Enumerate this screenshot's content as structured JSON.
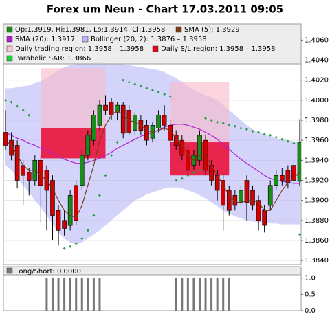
{
  "chart_data": {
    "type": "candlestick",
    "title": "Forex um Neun - Chart 17.03.2011 09:05",
    "ylim": [
      1.3836,
      1.4076
    ],
    "yticks": [
      {
        "value": 1.384,
        "label": "1.3840"
      },
      {
        "value": 1.386,
        "label": "1.3860"
      },
      {
        "value": 1.388,
        "label": "1.3880"
      },
      {
        "value": 1.39,
        "label": "1.3900"
      },
      {
        "value": 1.392,
        "label": "1.3920"
      },
      {
        "value": 1.394,
        "label": "1.3940"
      },
      {
        "value": 1.396,
        "label": "1.3960"
      },
      {
        "value": 1.398,
        "label": "1.3980"
      },
      {
        "value": 1.4,
        "label": "1.4000"
      },
      {
        "value": 1.402,
        "label": "1.4020"
      },
      {
        "value": 1.404,
        "label": "1.4040"
      },
      {
        "value": 1.406,
        "label": "1.4060"
      }
    ],
    "grid": true,
    "up_color": "#1a8c1a",
    "down_color": "#d40000",
    "open": [
      1.3968,
      1.396,
      1.3955,
      1.3935,
      1.3928,
      1.392,
      1.394,
      1.393,
      1.392,
      1.389,
      1.388,
      1.3875,
      1.3915,
      1.3915,
      1.3945,
      1.396,
      1.3975,
      1.3995,
      1.3998,
      1.3988,
      1.3995,
      1.399,
      1.397,
      1.398,
      1.3975,
      1.3962,
      1.3972,
      1.3985,
      1.3975,
      1.3965,
      1.396,
      1.395,
      1.3935,
      1.394,
      1.396,
      1.3935,
      1.3925,
      1.392,
      1.391,
      1.3905,
      1.3898,
      1.392,
      1.391,
      1.39,
      1.389,
      1.3895,
      1.3915,
      1.3925,
      1.393,
      1.3935,
      1.3919
    ],
    "high": [
      1.399,
      1.3968,
      1.396,
      1.394,
      1.3932,
      1.3945,
      1.3945,
      1.3935,
      1.3925,
      1.3895,
      1.389,
      1.391,
      1.392,
      1.395,
      1.397,
      1.399,
      1.4,
      1.4005,
      1.4002,
      1.3998,
      1.3998,
      1.3995,
      1.3988,
      1.3985,
      1.398,
      1.3978,
      1.399,
      1.3995,
      1.398,
      1.397,
      1.3965,
      1.3955,
      1.395,
      1.397,
      1.3965,
      1.394,
      1.393,
      1.3925,
      1.3915,
      1.391,
      1.3915,
      1.3925,
      1.3915,
      1.3905,
      1.3895,
      1.392,
      1.393,
      1.3932,
      1.3935,
      1.394,
      1.3981
    ],
    "low": [
      1.395,
      1.394,
      1.3912,
      1.3895,
      1.3905,
      1.3915,
      1.3878,
      1.387,
      1.386,
      1.3855,
      1.3865,
      1.387,
      1.3875,
      1.391,
      1.394,
      1.3955,
      1.397,
      1.3985,
      1.398,
      1.398,
      1.3962,
      1.3965,
      1.3965,
      1.3965,
      1.3955,
      1.3958,
      1.3968,
      1.397,
      1.3955,
      1.395,
      1.394,
      1.3925,
      1.393,
      1.3935,
      1.3925,
      1.3915,
      1.39,
      1.387,
      1.3885,
      1.389,
      1.3895,
      1.388,
      1.389,
      1.387,
      1.3868,
      1.389,
      1.391,
      1.3915,
      1.3912,
      1.3915,
      1.3914
    ],
    "close": [
      1.3955,
      1.3945,
      1.392,
      1.3925,
      1.392,
      1.394,
      1.3915,
      1.391,
      1.3885,
      1.387,
      1.3872,
      1.3905,
      1.388,
      1.3945,
      1.3965,
      1.3985,
      1.3995,
      1.399,
      1.3985,
      1.3995,
      1.3967,
      1.3968,
      1.3985,
      1.397,
      1.396,
      1.3975,
      1.3985,
      1.3975,
      1.396,
      1.3955,
      1.3945,
      1.393,
      1.3945,
      1.3965,
      1.393,
      1.392,
      1.391,
      1.3895,
      1.389,
      1.3895,
      1.391,
      1.3898,
      1.3895,
      1.388,
      1.3875,
      1.3915,
      1.3925,
      1.392,
      1.3918,
      1.392,
      1.3958
    ],
    "sma5": {
      "color": "#7a3a1a",
      "values": [
        1.396,
        1.3955,
        1.3945,
        1.3935,
        1.393,
        1.393,
        1.3925,
        1.392,
        1.3912,
        1.39,
        1.389,
        1.3885,
        1.3883,
        1.3895,
        1.3915,
        1.3935,
        1.396,
        1.3975,
        1.3985,
        1.399,
        1.3985,
        1.398,
        1.3978,
        1.3975,
        1.397,
        1.3968,
        1.397,
        1.3972,
        1.397,
        1.3962,
        1.3955,
        1.3945,
        1.394,
        1.3945,
        1.3945,
        1.3935,
        1.3925,
        1.3915,
        1.3905,
        1.3898,
        1.3898,
        1.39,
        1.39,
        1.3898,
        1.389,
        1.389,
        1.39,
        1.391,
        1.3918,
        1.3922,
        1.3929
      ]
    },
    "sma20": {
      "color": "#b020d0",
      "values": [
        1.3968,
        1.3965,
        1.3962,
        1.396,
        1.3957,
        1.3955,
        1.3952,
        1.395,
        1.3947,
        1.3944,
        1.3941,
        1.3939,
        1.3937,
        1.3937,
        1.3938,
        1.394,
        1.3942,
        1.3945,
        1.3948,
        1.3952,
        1.3955,
        1.3958,
        1.3961,
        1.3964,
        1.3966,
        1.3968,
        1.397,
        1.3973,
        1.3975,
        1.3976,
        1.3976,
        1.3975,
        1.3973,
        1.3971,
        1.3968,
        1.3965,
        1.3961,
        1.3956,
        1.3951,
        1.3946,
        1.3941,
        1.3937,
        1.3933,
        1.3929,
        1.3925,
        1.3922,
        1.392,
        1.3919,
        1.3918,
        1.3917,
        1.3917
      ]
    },
    "bollinger": {
      "color": "#b8b8f8",
      "upper": [
        1.4012,
        1.4012,
        1.4013,
        1.4014,
        1.4015,
        1.4017,
        1.4019,
        1.4022,
        1.4026,
        1.403,
        1.4033,
        1.4035,
        1.4036,
        1.4037,
        1.4037,
        1.4037,
        1.4038,
        1.4038,
        1.4037,
        1.4036,
        1.4036,
        1.4035,
        1.4034,
        1.4033,
        1.4032,
        1.4031,
        1.403,
        1.4028,
        1.4025,
        1.4022,
        1.4018,
        1.4014,
        1.401,
        1.4007,
        1.4005,
        1.4003,
        1.4,
        1.3995,
        1.399,
        1.3985,
        1.398,
        1.3975,
        1.3971,
        1.3968,
        1.3966,
        1.3964,
        1.3962,
        1.3961,
        1.396,
        1.3959,
        1.3958
      ],
      "lower": [
        1.3935,
        1.393,
        1.3922,
        1.3915,
        1.3908,
        1.39,
        1.3893,
        1.3885,
        1.3876,
        1.3868,
        1.3862,
        1.3858,
        1.3856,
        1.3858,
        1.3862,
        1.3866,
        1.387,
        1.3875,
        1.388,
        1.3885,
        1.389,
        1.3895,
        1.39,
        1.3903,
        1.3906,
        1.3908,
        1.391,
        1.3912,
        1.3913,
        1.3913,
        1.3912,
        1.391,
        1.3908,
        1.3905,
        1.3902,
        1.3898,
        1.3894,
        1.389,
        1.3887,
        1.3884,
        1.3882,
        1.388,
        1.3879,
        1.3878,
        1.3878,
        1.3877,
        1.3877,
        1.3876,
        1.3876,
        1.3876,
        1.3876
      ]
    },
    "sar": {
      "color": "#20a040",
      "values": [
        1.4,
        1.3998,
        1.3994,
        1.399,
        1.3985,
        null,
        null,
        null,
        null,
        null,
        1.3852,
        1.3854,
        1.3857,
        1.3862,
        1.387,
        1.3885,
        1.3905,
        1.3925,
        1.3945,
        1.3958,
        1.402,
        1.4018,
        1.4016,
        1.4014,
        1.4012,
        1.401,
        1.4008,
        1.4006,
        1.4004,
        1.392,
        1.3922,
        1.3925,
        1.3928,
        1.393,
        1.3982,
        1.398,
        1.3978,
        1.3977,
        1.3975,
        1.3974,
        1.3972,
        1.3971,
        1.3969,
        1.3968,
        1.3966,
        1.3965,
        1.3963,
        1.3961,
        1.3959,
        1.3957,
        1.3866
      ]
    },
    "trading_region": {
      "color": "#f8b8c8",
      "boxes": [
        {
          "start": 6,
          "end": 17,
          "low": 1.3942,
          "high": 1.4032
        },
        {
          "start": 28,
          "end": 38,
          "low": 1.3925,
          "high": 1.4018
        }
      ]
    },
    "sl_region": {
      "color": "#e8143c",
      "boxes": [
        {
          "start": 6,
          "end": 17,
          "low": 1.3942,
          "high": 1.3972
        },
        {
          "start": 28,
          "end": 38,
          "low": 1.3925,
          "high": 1.3958
        }
      ]
    },
    "legend": [
      {
        "label": "Op:1.3919, Hi:1.3981, Lo:1.3914, Cl:1.3958",
        "color": "#1a8c1a"
      },
      {
        "label": "SMA (5): 1.3929",
        "color": "#7a3a1a"
      },
      {
        "label": "SMA (20): 1.3917",
        "color": "#b020d0"
      },
      {
        "label": "Bollinger (20, 2): 1.3876 – 1.3958",
        "color": "#b8b8f8"
      },
      {
        "label": "Daily trading region: 1.3958 – 1.3958",
        "color": "#f8c8d0"
      },
      {
        "label": "Daily S/L region: 1.3958 – 1.3958",
        "color": "#e8001c"
      },
      {
        "label": "Parabolic SAR: 1.3866",
        "color": "#20d040"
      }
    ],
    "long_short": {
      "label": "Long/Short: 0.0000",
      "color": "#777777",
      "ylim": [
        0,
        1.1
      ],
      "yticks": [
        {
          "value": 1,
          "label": "1.0"
        },
        {
          "value": 0.5,
          "label": "0.5"
        },
        {
          "value": 0,
          "label": "0.0"
        }
      ],
      "values": [
        0,
        0,
        0,
        0,
        0,
        0,
        0,
        1,
        1,
        1,
        1,
        1,
        1,
        1,
        1,
        1,
        1,
        0,
        0,
        0,
        0,
        0,
        0,
        0,
        0,
        0,
        0,
        0,
        0,
        1,
        1,
        1,
        1,
        1,
        1,
        1,
        1,
        1,
        1,
        0,
        0,
        0,
        0,
        0,
        0,
        0,
        0,
        0,
        0,
        0,
        0
      ]
    }
  }
}
